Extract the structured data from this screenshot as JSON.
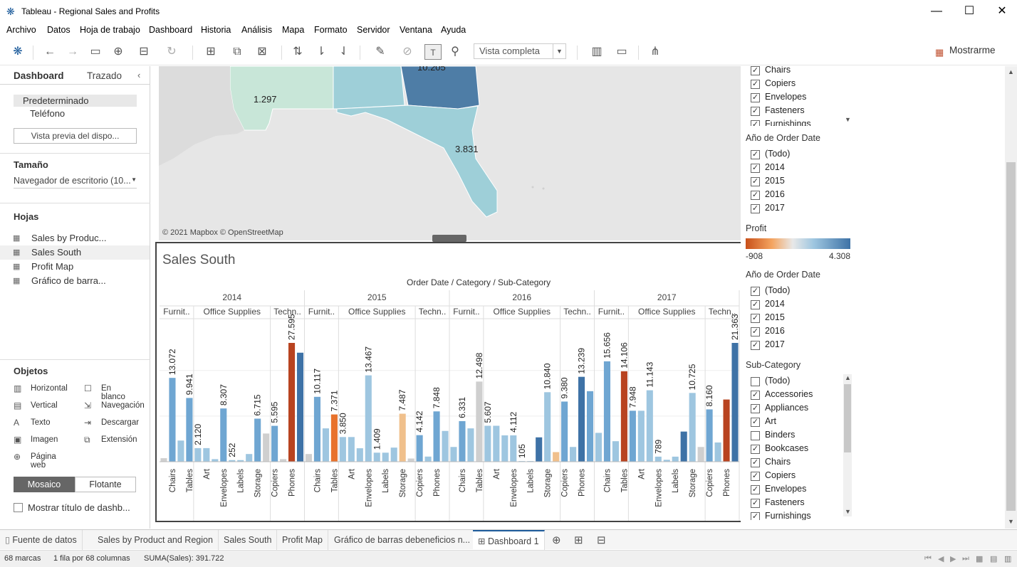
{
  "window": {
    "title": "Tableau - Regional Sales and Profits"
  },
  "menu": [
    "Archivo",
    "Datos",
    "Hoja de trabajo",
    "Dashboard",
    "Historia",
    "Análisis",
    "Mapa",
    "Formato",
    "Servidor",
    "Ventana",
    "Ayuda"
  ],
  "toolbar": {
    "view_select": "Vista completa",
    "show_me": "Mostrarme"
  },
  "left": {
    "tab_dashboard": "Dashboard",
    "tab_layout": "Trazado",
    "device_default": "Predeterminado",
    "device_phone": "Teléfono",
    "device_preview": "Vista previa del dispo...",
    "size_header": "Tamaño",
    "size_value": "Navegador de escritorio (10...",
    "sheets_header": "Hojas",
    "sheets": [
      "Sales by Produc...",
      "Sales South",
      "Profit Map",
      "Gráfico de barra..."
    ],
    "objects_header": "Objetos",
    "objects": [
      "Horizontal",
      "Vertical",
      "Texto",
      "Imagen",
      "Página web",
      "En blanco",
      "Navegación",
      "Descargar",
      "Extensión"
    ],
    "tiled": "Mosaico",
    "floating": "Flotante",
    "show_title": "Mostrar título de dashb..."
  },
  "map": {
    "labels": [
      "1.297",
      "3.831",
      "10.205"
    ],
    "attribution": "© 2021 Mapbox © OpenStreetMap"
  },
  "right": {
    "top_items": [
      "Chairs",
      "Copiers",
      "Envelopes",
      "Fasteners",
      "Furnishings"
    ],
    "year_header": "Año de Order Date",
    "years": [
      "(Todo)",
      "2014",
      "2015",
      "2016",
      "2017"
    ],
    "profit_header": "Profit",
    "profit_min": "-908",
    "profit_max": "4.308",
    "year_header2": "Año de Order Date",
    "years2": [
      "(Todo)",
      "2014",
      "2015",
      "2016",
      "2017"
    ],
    "subcat_header": "Sub-Category",
    "subcats": [
      "(Todo)",
      "Accessories",
      "Appliances",
      "Art",
      "Binders",
      "Bookcases",
      "Chairs",
      "Copiers",
      "Envelopes",
      "Fasteners",
      "Furnishings"
    ],
    "subcats_checked": [
      false,
      true,
      true,
      true,
      false,
      true,
      true,
      true,
      true,
      true,
      true
    ]
  },
  "chart_data": {
    "type": "bar",
    "title": "Sales South",
    "header": "Order Date / Category / Sub-Category",
    "years": [
      "2014",
      "2015",
      "2016",
      "2017"
    ],
    "categories": [
      "Furnit..",
      "Office Supplies",
      "Techn.."
    ],
    "colors": {
      "lightest": "#c8d4e0",
      "light": "#9ec6e0",
      "mid": "#6fa6d2",
      "dark": "#3e72a6",
      "orange": "#e8722c",
      "red": "#b84320",
      "tan": "#f0c08c",
      "grey": "#cfcfcf"
    },
    "groups": [
      {
        "year": "2014",
        "category": "Furnit..",
        "bars": [
          {
            "label": "",
            "value": 550,
            "color": "grey"
          },
          {
            "label": "Chairs",
            "value": 13072,
            "color": "mid"
          },
          {
            "label": "",
            "value": 3300,
            "color": "light"
          },
          {
            "label": "Tables",
            "value": 9941,
            "color": "mid"
          }
        ]
      },
      {
        "year": "2014",
        "category": "Office Supplies",
        "bars": [
          {
            "label": "",
            "value": 2120,
            "color": "light"
          },
          {
            "label": "Art",
            "value": 2120,
            "color": "light"
          },
          {
            "label": "",
            "value": 400,
            "color": "light"
          },
          {
            "label": "Envelopes",
            "value": 8307,
            "color": "mid"
          },
          {
            "label": "",
            "value": 252,
            "color": "light"
          },
          {
            "label": "Labels",
            "value": 252,
            "color": "light"
          },
          {
            "label": "",
            "value": 1200,
            "color": "light"
          },
          {
            "label": "Storage",
            "value": 6715,
            "color": "mid"
          },
          {
            "label": "",
            "value": 4400,
            "color": "grey"
          }
        ]
      },
      {
        "year": "2014",
        "category": "Techn..",
        "bars": [
          {
            "label": "Copiers",
            "value": 5595,
            "color": "mid"
          },
          {
            "label": "",
            "value": 400,
            "color": "grey"
          },
          {
            "label": "Phones",
            "value": 27595,
            "color": "red"
          },
          {
            "label": "",
            "value": 17000,
            "color": "dark"
          }
        ]
      },
      {
        "year": "2015",
        "category": "Furnit..",
        "bars": [
          {
            "label": "",
            "value": 1200,
            "color": "grey"
          },
          {
            "label": "Chairs",
            "value": 10117,
            "color": "mid"
          },
          {
            "label": "",
            "value": 5200,
            "color": "light"
          },
          {
            "label": "Tables",
            "value": 7371,
            "color": "orange"
          }
        ]
      },
      {
        "year": "2015",
        "category": "Office Supplies",
        "bars": [
          {
            "label": "",
            "value": 3850,
            "color": "light"
          },
          {
            "label": "Art",
            "value": 3850,
            "color": "light"
          },
          {
            "label": "",
            "value": 2100,
            "color": "light"
          },
          {
            "label": "Envelopes",
            "value": 13467,
            "color": "light"
          },
          {
            "label": "",
            "value": 1409,
            "color": "light"
          },
          {
            "label": "Labels",
            "value": 1409,
            "color": "light"
          },
          {
            "label": "",
            "value": 2200,
            "color": "light"
          },
          {
            "label": "Storage",
            "value": 7487,
            "color": "tan"
          },
          {
            "label": "",
            "value": 500,
            "color": "grey"
          }
        ]
      },
      {
        "year": "2015",
        "category": "Techn..",
        "bars": [
          {
            "label": "Copiers",
            "value": 4142,
            "color": "mid"
          },
          {
            "label": "",
            "value": 800,
            "color": "light"
          },
          {
            "label": "Phones",
            "value": 7848,
            "color": "mid"
          },
          {
            "label": "",
            "value": 4800,
            "color": "light"
          }
        ]
      },
      {
        "year": "2016",
        "category": "Furnit..",
        "bars": [
          {
            "label": "",
            "value": 2300,
            "color": "light"
          },
          {
            "label": "Chairs",
            "value": 6331,
            "color": "mid"
          },
          {
            "label": "",
            "value": 5200,
            "color": "light"
          },
          {
            "label": "Tables",
            "value": 12498,
            "color": "grey"
          }
        ]
      },
      {
        "year": "2016",
        "category": "Office Supplies",
        "bars": [
          {
            "label": "",
            "value": 5607,
            "color": "light"
          },
          {
            "label": "Art",
            "value": 5607,
            "color": "light"
          },
          {
            "label": "",
            "value": 4112,
            "color": "light"
          },
          {
            "label": "Envelopes",
            "value": 4112,
            "color": "light"
          },
          {
            "label": "",
            "value": 105,
            "color": "light"
          },
          {
            "label": "Labels",
            "value": 105,
            "color": "light"
          },
          {
            "label": "",
            "value": 3800,
            "color": "dark"
          },
          {
            "label": "Storage",
            "value": 10840,
            "color": "light"
          },
          {
            "label": "",
            "value": 1500,
            "color": "tan"
          }
        ]
      },
      {
        "year": "2016",
        "category": "Techn..",
        "bars": [
          {
            "label": "Copiers",
            "value": 9380,
            "color": "mid"
          },
          {
            "label": "",
            "value": 2300,
            "color": "light"
          },
          {
            "label": "Phones",
            "value": 13239,
            "color": "dark"
          },
          {
            "label": "",
            "value": 11000,
            "color": "mid"
          }
        ]
      },
      {
        "year": "2017",
        "category": "Furnit..",
        "bars": [
          {
            "label": "",
            "value": 4500,
            "color": "light"
          },
          {
            "label": "Chairs",
            "value": 15656,
            "color": "mid"
          },
          {
            "label": "",
            "value": 3200,
            "color": "light"
          },
          {
            "label": "Tables",
            "value": 14106,
            "color": "red"
          }
        ]
      },
      {
        "year": "2017",
        "category": "Office Supplies",
        "bars": [
          {
            "label": "",
            "value": 7948,
            "color": "mid"
          },
          {
            "label": "Art",
            "value": 7948,
            "color": "light"
          },
          {
            "label": "",
            "value": 11143,
            "color": "light"
          },
          {
            "label": "Envelopes",
            "value": 789,
            "color": "light"
          },
          {
            "label": "",
            "value": 300,
            "color": "light"
          },
          {
            "label": "Labels",
            "value": 789,
            "color": "light"
          },
          {
            "label": "",
            "value": 4700,
            "color": "dark"
          },
          {
            "label": "Storage",
            "value": 10725,
            "color": "light"
          },
          {
            "label": "",
            "value": 2300,
            "color": "grey"
          }
        ]
      },
      {
        "year": "2017",
        "category": "Techn..",
        "bars": [
          {
            "label": "Copiers",
            "value": 8160,
            "color": "mid"
          },
          {
            "label": "",
            "value": 3000,
            "color": "light"
          },
          {
            "label": "Phones",
            "value": 9700,
            "color": "red"
          },
          {
            "label": "",
            "value": 21363,
            "color": "dark"
          }
        ]
      }
    ],
    "value_labels": [
      {
        "group": 0,
        "bar": 1,
        "text": "13.072"
      },
      {
        "group": 0,
        "bar": 3,
        "text": "9.941"
      },
      {
        "group": 1,
        "bar": 0,
        "text": "2.120"
      },
      {
        "group": 1,
        "bar": 3,
        "text": "8.307"
      },
      {
        "group": 1,
        "bar": 4,
        "text": "252"
      },
      {
        "group": 1,
        "bar": 7,
        "text": "6.715"
      },
      {
        "group": 2,
        "bar": 0,
        "text": "5.595"
      },
      {
        "group": 2,
        "bar": 2,
        "text": "27.595"
      },
      {
        "group": 3,
        "bar": 1,
        "text": "10.117"
      },
      {
        "group": 3,
        "bar": 3,
        "text": "7.371"
      },
      {
        "group": 4,
        "bar": 0,
        "text": "3.850"
      },
      {
        "group": 4,
        "bar": 3,
        "text": "13.467"
      },
      {
        "group": 4,
        "bar": 4,
        "text": "1.409"
      },
      {
        "group": 4,
        "bar": 7,
        "text": "7.487"
      },
      {
        "group": 5,
        "bar": 0,
        "text": "4.142"
      },
      {
        "group": 5,
        "bar": 2,
        "text": "7.848"
      },
      {
        "group": 6,
        "bar": 1,
        "text": "6.331"
      },
      {
        "group": 6,
        "bar": 3,
        "text": "12.498"
      },
      {
        "group": 7,
        "bar": 0,
        "text": "5.607"
      },
      {
        "group": 7,
        "bar": 3,
        "text": "4.112"
      },
      {
        "group": 7,
        "bar": 4,
        "text": "105"
      },
      {
        "group": 7,
        "bar": 7,
        "text": "10.840"
      },
      {
        "group": 8,
        "bar": 0,
        "text": "9.380"
      },
      {
        "group": 8,
        "bar": 2,
        "text": "13.239"
      },
      {
        "group": 9,
        "bar": 1,
        "text": "15.656"
      },
      {
        "group": 9,
        "bar": 3,
        "text": "14.106"
      },
      {
        "group": 10,
        "bar": 0,
        "text": "7.948"
      },
      {
        "group": 10,
        "bar": 2,
        "text": "11.143"
      },
      {
        "group": 10,
        "bar": 3,
        "text": "789"
      },
      {
        "group": 10,
        "bar": 7,
        "text": "10.725"
      },
      {
        "group": 11,
        "bar": 0,
        "text": "8.160"
      },
      {
        "group": 11,
        "bar": 3,
        "text": "21.363"
      }
    ],
    "ylim": [
      0,
      30000
    ]
  },
  "bottom_tabs": [
    "Fuente de datos",
    "Sales by Product and Region",
    "Sales South",
    "Profit Map",
    "Gráfico de barras debeneficios n...",
    "Dashboard 1"
  ],
  "status": {
    "marks": "68 marcas",
    "rows": "1 fila por 68 columnas",
    "sum": "SUMA(Sales): 391.722"
  }
}
